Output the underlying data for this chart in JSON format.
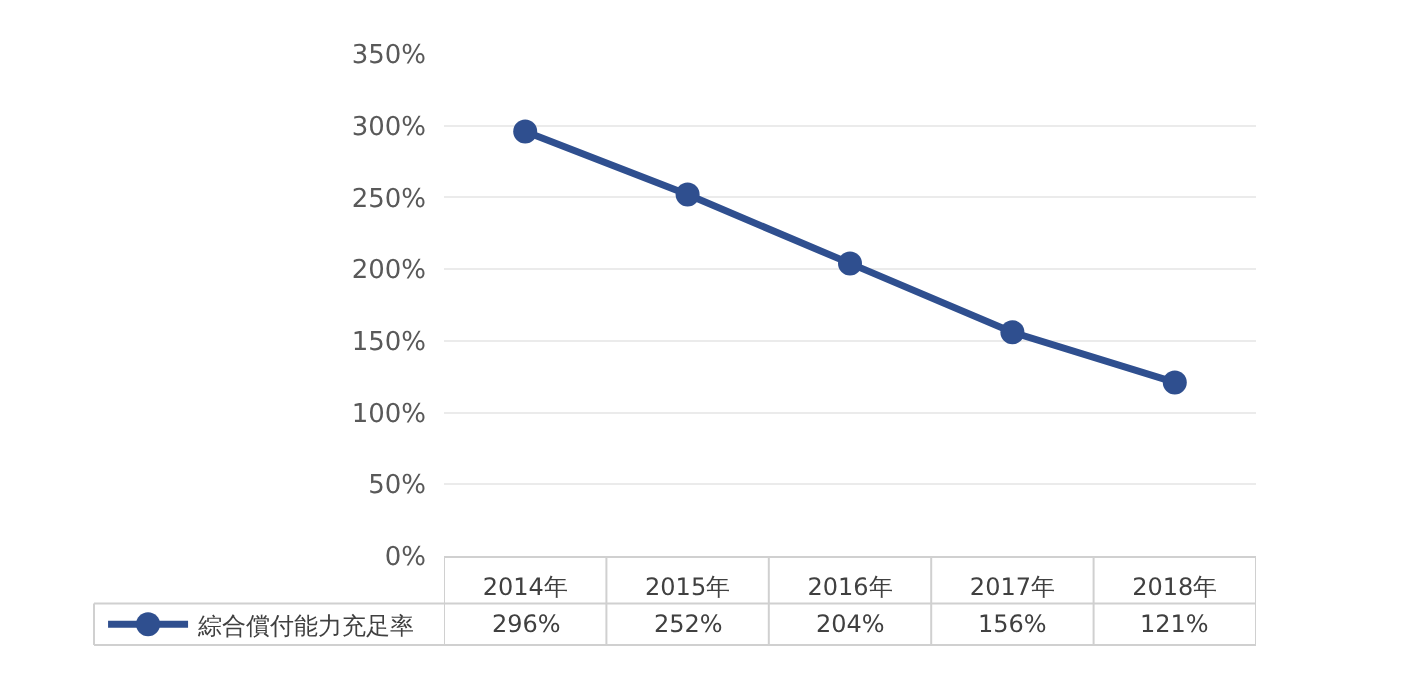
{
  "chart_data": {
    "type": "line",
    "categories": [
      "2014年",
      "2015年",
      "2016年",
      "2017年",
      "2018年"
    ],
    "series": [
      {
        "name": "綜合償付能力充足率",
        "color": "#2f4f8f",
        "values": [
          296,
          252,
          204,
          156,
          121
        ]
      }
    ],
    "ylim": [
      0,
      350
    ],
    "yticks": [
      {
        "value": 0,
        "label": "0%"
      },
      {
        "value": 50,
        "label": "50%"
      },
      {
        "value": 100,
        "label": "100%"
      },
      {
        "value": 150,
        "label": "150%"
      },
      {
        "value": 200,
        "label": "200%"
      },
      {
        "value": 250,
        "label": "250%"
      },
      {
        "value": 300,
        "label": "300%"
      },
      {
        "value": 350,
        "label": "350%"
      }
    ],
    "value_labels": [
      "296%",
      "252%",
      "204%",
      "156%",
      "121%"
    ],
    "grid": "y",
    "legend": "bottom left",
    "marker": "circle",
    "line_style": "solid"
  }
}
